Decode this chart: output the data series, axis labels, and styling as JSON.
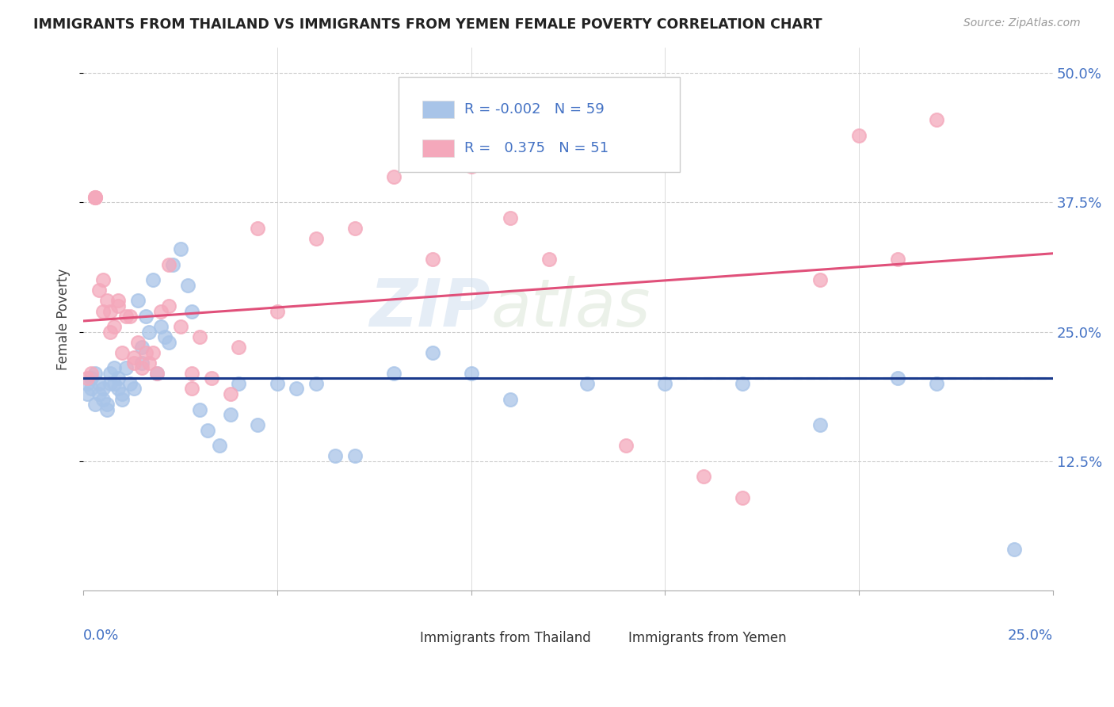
{
  "title": "IMMIGRANTS FROM THAILAND VS IMMIGRANTS FROM YEMEN FEMALE POVERTY CORRELATION CHART",
  "source": "Source: ZipAtlas.com",
  "ylabel": "Female Poverty",
  "ytick_values": [
    0.125,
    0.25,
    0.375,
    0.5
  ],
  "ytick_labels": [
    "12.5%",
    "25.0%",
    "37.5%",
    "50.0%"
  ],
  "xlim": [
    0.0,
    0.25
  ],
  "ylim": [
    0.0,
    0.525
  ],
  "legend_r_thailand": "-0.002",
  "legend_n_thailand": "59",
  "legend_r_yemen": "0.375",
  "legend_n_yemen": "51",
  "color_thailand": "#a8c4e8",
  "color_yemen": "#f4a8bb",
  "line_color_thailand": "#1a3a8c",
  "line_color_yemen": "#e0507a",
  "text_color_blue": "#4472c4",
  "watermark_color": "#d0dff0",
  "grid_color": "#cccccc",
  "thailand_x": [
    0.001,
    0.001,
    0.002,
    0.002,
    0.003,
    0.003,
    0.004,
    0.004,
    0.005,
    0.005,
    0.006,
    0.006,
    0.007,
    0.007,
    0.008,
    0.008,
    0.009,
    0.009,
    0.01,
    0.01,
    0.011,
    0.012,
    0.013,
    0.014,
    0.015,
    0.015,
    0.016,
    0.017,
    0.018,
    0.019,
    0.02,
    0.021,
    0.022,
    0.023,
    0.025,
    0.027,
    0.028,
    0.03,
    0.032,
    0.035,
    0.038,
    0.04,
    0.045,
    0.05,
    0.055,
    0.06,
    0.065,
    0.07,
    0.08,
    0.09,
    0.1,
    0.11,
    0.13,
    0.15,
    0.17,
    0.19,
    0.21,
    0.22,
    0.24
  ],
  "thailand_y": [
    0.2,
    0.19,
    0.205,
    0.195,
    0.21,
    0.18,
    0.2,
    0.19,
    0.195,
    0.185,
    0.18,
    0.175,
    0.2,
    0.21,
    0.215,
    0.2,
    0.205,
    0.195,
    0.185,
    0.19,
    0.215,
    0.2,
    0.195,
    0.28,
    0.235,
    0.22,
    0.265,
    0.25,
    0.3,
    0.21,
    0.255,
    0.245,
    0.24,
    0.315,
    0.33,
    0.295,
    0.27,
    0.175,
    0.155,
    0.14,
    0.17,
    0.2,
    0.16,
    0.2,
    0.195,
    0.2,
    0.13,
    0.13,
    0.21,
    0.23,
    0.21,
    0.185,
    0.2,
    0.2,
    0.2,
    0.16,
    0.205,
    0.2,
    0.04
  ],
  "yemen_x": [
    0.001,
    0.002,
    0.003,
    0.003,
    0.004,
    0.005,
    0.006,
    0.007,
    0.008,
    0.009,
    0.01,
    0.011,
    0.012,
    0.013,
    0.014,
    0.015,
    0.016,
    0.017,
    0.018,
    0.019,
    0.02,
    0.022,
    0.025,
    0.028,
    0.03,
    0.033,
    0.038,
    0.04,
    0.045,
    0.05,
    0.06,
    0.07,
    0.08,
    0.09,
    0.1,
    0.11,
    0.12,
    0.14,
    0.16,
    0.17,
    0.19,
    0.2,
    0.21,
    0.22,
    0.003,
    0.005,
    0.007,
    0.009,
    0.013,
    0.022,
    0.028
  ],
  "yemen_y": [
    0.205,
    0.21,
    0.38,
    0.38,
    0.29,
    0.3,
    0.28,
    0.27,
    0.255,
    0.275,
    0.23,
    0.265,
    0.265,
    0.225,
    0.24,
    0.215,
    0.23,
    0.22,
    0.23,
    0.21,
    0.27,
    0.275,
    0.255,
    0.21,
    0.245,
    0.205,
    0.19,
    0.235,
    0.35,
    0.27,
    0.34,
    0.35,
    0.4,
    0.32,
    0.41,
    0.36,
    0.32,
    0.14,
    0.11,
    0.09,
    0.3,
    0.44,
    0.32,
    0.455,
    0.38,
    0.27,
    0.25,
    0.28,
    0.22,
    0.315,
    0.195
  ]
}
